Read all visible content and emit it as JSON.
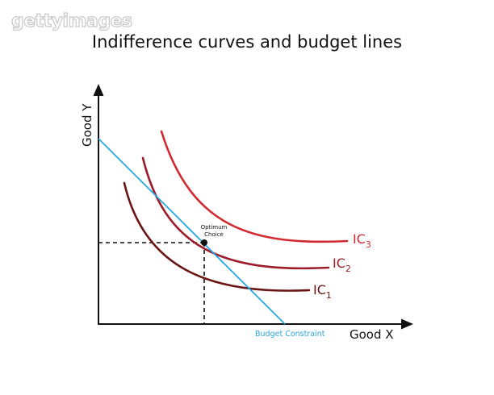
{
  "watermark": "gettyimages",
  "title": "Indifference curves and budget lines",
  "axes": {
    "y_label": "Good Y",
    "x_label": "Good X"
  },
  "curves": [
    {
      "id": "ic1",
      "label_main": "IC",
      "label_sub": "1",
      "color": "#6b1414"
    },
    {
      "id": "ic2",
      "label_main": "IC",
      "label_sub": "2",
      "color": "#9c1c2a"
    },
    {
      "id": "ic3",
      "label_main": "IC",
      "label_sub": "3",
      "color": "#d22a30"
    }
  ],
  "budget_line": {
    "label": "Budget Constraint",
    "color": "#2aa7e0"
  },
  "optimum": {
    "label_line1": "Optimum",
    "label_line2": "Choice"
  },
  "colors": {
    "axis": "#111111",
    "guide": "#111111"
  }
}
